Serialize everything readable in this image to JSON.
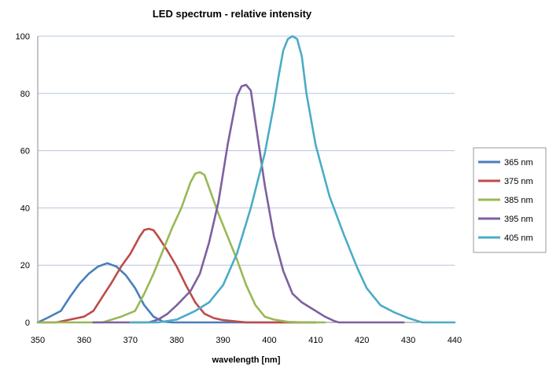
{
  "chart_data": {
    "type": "line",
    "title": "LED spectrum - relative intensity",
    "xlabel": "wavelength [nm]",
    "ylabel": "",
    "xlim": [
      350,
      440
    ],
    "ylim": [
      0,
      100
    ],
    "xticks": [
      350,
      360,
      370,
      380,
      390,
      400,
      410,
      420,
      430,
      440
    ],
    "yticks": [
      0,
      20,
      40,
      60,
      80,
      100
    ],
    "grid": "horizontal",
    "legend": "right",
    "series": [
      {
        "name": "365 nm",
        "color": "#4a7ebb",
        "x": [
          350,
          352,
          355,
          357,
          359,
          361,
          363,
          365,
          367,
          369,
          371,
          373,
          375,
          377,
          379,
          381,
          383,
          385,
          390,
          400,
          410
        ],
        "y": [
          0,
          1.5,
          4,
          9,
          13.5,
          17,
          19.5,
          20.7,
          19.5,
          16.5,
          12,
          6,
          2,
          0.3,
          0,
          0,
          0,
          0,
          0,
          0,
          0
        ]
      },
      {
        "name": "375 nm",
        "color": "#be4b48",
        "x": [
          350,
          354,
          357,
          360,
          362,
          364,
          366,
          368,
          370,
          372,
          373,
          374,
          375,
          376,
          378,
          380,
          382,
          384,
          386,
          388,
          390,
          395,
          400,
          405,
          410
        ],
        "y": [
          0,
          0,
          1,
          2,
          4,
          9,
          14,
          19.5,
          24,
          30,
          32.3,
          32.7,
          32.2,
          30,
          25,
          19.5,
          13,
          7,
          3,
          1.5,
          0.8,
          0,
          0,
          0,
          0
        ]
      },
      {
        "name": "385 nm",
        "color": "#98b954",
        "x": [
          350,
          360,
          364,
          368,
          371,
          373,
          375,
          377,
          379,
          381,
          383,
          384,
          385,
          386,
          387,
          389,
          391,
          393,
          395,
          397,
          399,
          401,
          404,
          408,
          412
        ],
        "y": [
          0,
          0,
          0,
          2,
          4,
          10,
          17,
          25,
          33,
          40,
          49,
          52,
          52.5,
          51.5,
          47,
          38,
          30,
          22,
          13,
          6,
          2,
          1,
          0.2,
          0,
          0
        ]
      },
      {
        "name": "395 nm",
        "color": "#7d60a0",
        "x": [
          362,
          370,
          374,
          376,
          378,
          380,
          383,
          385,
          387,
          389,
          391,
          393,
          394,
          395,
          396,
          397,
          399,
          401,
          403,
          405,
          407,
          410,
          412,
          414,
          415,
          420,
          429
        ],
        "y": [
          0,
          0,
          0,
          1,
          3,
          6,
          11,
          17,
          28,
          42,
          62,
          79,
          82.5,
          83,
          81,
          70,
          48,
          30,
          18,
          10,
          7,
          4,
          2,
          0.5,
          0,
          0,
          0
        ]
      },
      {
        "name": "405 nm",
        "color": "#4bacc6",
        "x": [
          370,
          376,
          380,
          384,
          387,
          390,
          393,
          396,
          399,
          401,
          402,
          403,
          404,
          405,
          406,
          407,
          408,
          410,
          413,
          416,
          419,
          421,
          424,
          427,
          430,
          432,
          433,
          440
        ],
        "y": [
          0,
          0,
          1,
          4,
          7,
          13,
          24,
          40,
          59,
          76,
          86,
          95,
          99,
          100,
          99,
          93,
          80,
          62,
          44,
          31,
          19,
          12,
          6,
          3.5,
          1.5,
          0.5,
          0,
          0
        ]
      }
    ]
  }
}
